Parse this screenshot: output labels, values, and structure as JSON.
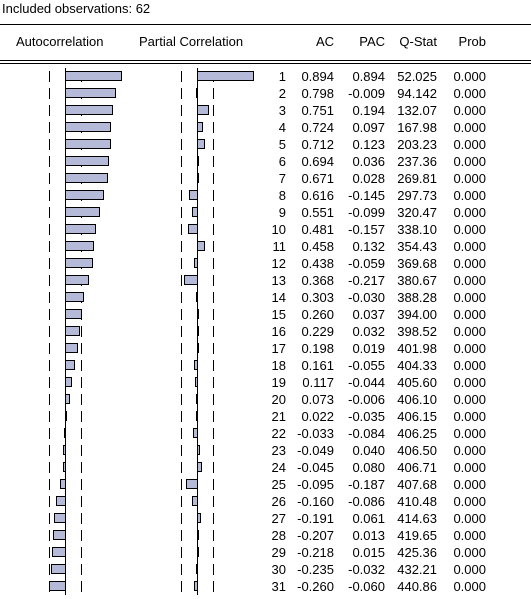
{
  "observations_label": "Included observations: 62",
  "columns": {
    "autocorrelation": "Autocorrelation",
    "partial_correlation": "Partial Correlation",
    "ac": "AC",
    "pac": "PAC",
    "qstat": "Q-Stat",
    "prob": "Prob"
  },
  "bar_color": "#b4bad8",
  "confidence_band": 0.254,
  "rows": [
    {
      "lag": "1",
      "ac": "0.894",
      "pac": "0.894",
      "q": "52.025",
      "p": "0.000"
    },
    {
      "lag": "2",
      "ac": "0.798",
      "pac": "-0.009",
      "q": "94.142",
      "p": "0.000"
    },
    {
      "lag": "3",
      "ac": "0.751",
      "pac": "0.194",
      "q": "132.07",
      "p": "0.000"
    },
    {
      "lag": "4",
      "ac": "0.724",
      "pac": "0.097",
      "q": "167.98",
      "p": "0.000"
    },
    {
      "lag": "5",
      "ac": "0.712",
      "pac": "0.123",
      "q": "203.23",
      "p": "0.000"
    },
    {
      "lag": "6",
      "ac": "0.694",
      "pac": "0.036",
      "q": "237.36",
      "p": "0.000"
    },
    {
      "lag": "7",
      "ac": "0.671",
      "pac": "0.028",
      "q": "269.81",
      "p": "0.000"
    },
    {
      "lag": "8",
      "ac": "0.616",
      "pac": "-0.145",
      "q": "297.73",
      "p": "0.000"
    },
    {
      "lag": "9",
      "ac": "0.551",
      "pac": "-0.099",
      "q": "320.47",
      "p": "0.000"
    },
    {
      "lag": "10",
      "ac": "0.481",
      "pac": "-0.157",
      "q": "338.10",
      "p": "0.000"
    },
    {
      "lag": "11",
      "ac": "0.458",
      "pac": "0.132",
      "q": "354.43",
      "p": "0.000"
    },
    {
      "lag": "12",
      "ac": "0.438",
      "pac": "-0.059",
      "q": "369.68",
      "p": "0.000"
    },
    {
      "lag": "13",
      "ac": "0.368",
      "pac": "-0.217",
      "q": "380.67",
      "p": "0.000"
    },
    {
      "lag": "14",
      "ac": "0.303",
      "pac": "-0.030",
      "q": "388.28",
      "p": "0.000"
    },
    {
      "lag": "15",
      "ac": "0.260",
      "pac": "0.037",
      "q": "394.00",
      "p": "0.000"
    },
    {
      "lag": "16",
      "ac": "0.229",
      "pac": "0.032",
      "q": "398.52",
      "p": "0.000"
    },
    {
      "lag": "17",
      "ac": "0.198",
      "pac": "0.019",
      "q": "401.98",
      "p": "0.000"
    },
    {
      "lag": "18",
      "ac": "0.161",
      "pac": "-0.055",
      "q": "404.33",
      "p": "0.000"
    },
    {
      "lag": "19",
      "ac": "0.117",
      "pac": "-0.044",
      "q": "405.60",
      "p": "0.000"
    },
    {
      "lag": "20",
      "ac": "0.073",
      "pac": "-0.006",
      "q": "406.10",
      "p": "0.000"
    },
    {
      "lag": "21",
      "ac": "0.022",
      "pac": "-0.035",
      "q": "406.15",
      "p": "0.000"
    },
    {
      "lag": "22",
      "ac": "-0.033",
      "pac": "-0.084",
      "q": "406.25",
      "p": "0.000"
    },
    {
      "lag": "23",
      "ac": "-0.049",
      "pac": "0.040",
      "q": "406.50",
      "p": "0.000"
    },
    {
      "lag": "24",
      "ac": "-0.045",
      "pac": "0.080",
      "q": "406.71",
      "p": "0.000"
    },
    {
      "lag": "25",
      "ac": "-0.095",
      "pac": "-0.187",
      "q": "407.68",
      "p": "0.000"
    },
    {
      "lag": "26",
      "ac": "-0.160",
      "pac": "-0.086",
      "q": "410.48",
      "p": "0.000"
    },
    {
      "lag": "27",
      "ac": "-0.191",
      "pac": "0.061",
      "q": "414.63",
      "p": "0.000"
    },
    {
      "lag": "28",
      "ac": "-0.207",
      "pac": "0.013",
      "q": "419.65",
      "p": "0.000"
    },
    {
      "lag": "29",
      "ac": "-0.218",
      "pac": "0.015",
      "q": "425.36",
      "p": "0.000"
    },
    {
      "lag": "30",
      "ac": "-0.235",
      "pac": "-0.032",
      "q": "432.21",
      "p": "0.000"
    },
    {
      "lag": "31",
      "ac": "-0.260",
      "pac": "-0.060",
      "q": "440.86",
      "p": "0.000"
    }
  ]
}
